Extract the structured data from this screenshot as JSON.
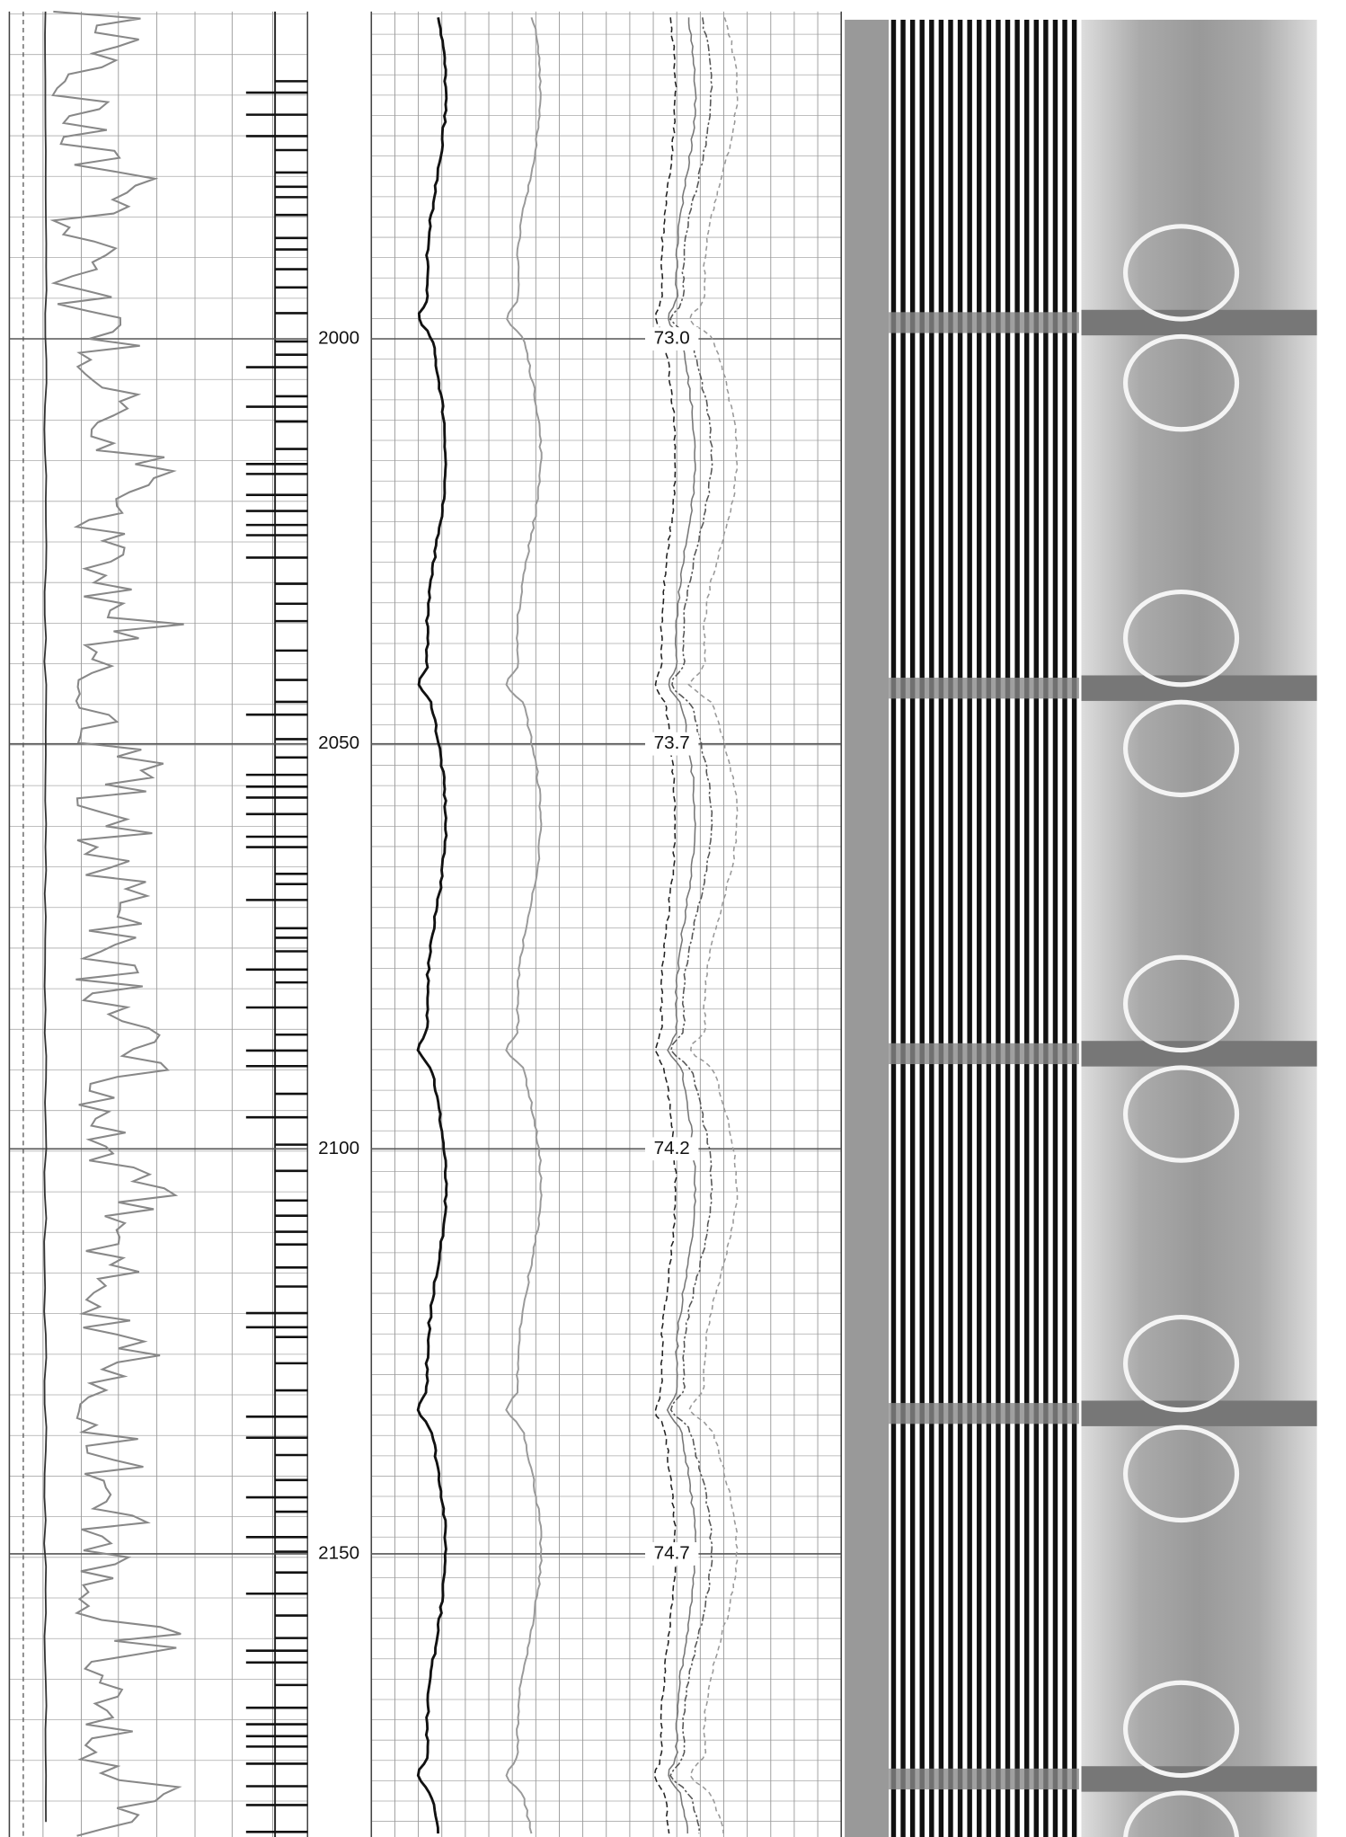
{
  "depth_track": {
    "labels": [
      2000,
      2050,
      2100,
      2150
    ]
  },
  "annotations": [
    "73.0",
    "73.7",
    "74.2",
    "74.7"
  ]
}
